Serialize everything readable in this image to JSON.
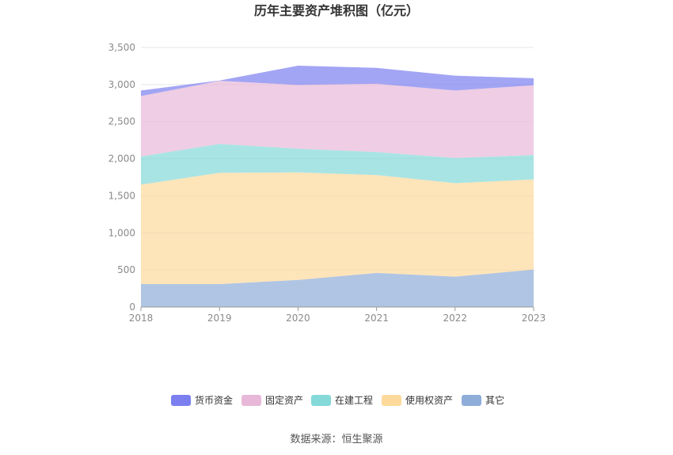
{
  "chart_data": {
    "type": "area",
    "stacked": true,
    "title": "历年主要资产堆积图（亿元）",
    "categories": [
      "2018",
      "2019",
      "2020",
      "2021",
      "2022",
      "2023"
    ],
    "ylim": [
      0,
      3500
    ],
    "yticks": [
      0,
      500,
      1000,
      1500,
      2000,
      2500,
      3000,
      3500
    ],
    "ytick_labels": [
      "0",
      "500",
      "1,000",
      "1,500",
      "2,000",
      "2,500",
      "3,000",
      "3,500"
    ],
    "grid": true,
    "legend_position": "bottom",
    "series": [
      {
        "name": "其它",
        "color": "#8fadd9",
        "values": [
          310,
          310,
          365,
          460,
          410,
          505
        ]
      },
      {
        "name": "使用权资产",
        "color": "#fdd99b",
        "values": [
          1340,
          1500,
          1450,
          1320,
          1260,
          1215
        ]
      },
      {
        "name": "在建工程",
        "color": "#85d9d9",
        "values": [
          380,
          390,
          320,
          310,
          340,
          330
        ]
      },
      {
        "name": "固定资产",
        "color": "#e8b8d8",
        "values": [
          815,
          850,
          860,
          920,
          910,
          940
        ]
      },
      {
        "name": "货币资金",
        "color": "#7b7ff0",
        "values": [
          75,
          5,
          260,
          215,
          200,
          95
        ]
      }
    ],
    "legend_order": [
      "货币资金",
      "固定资产",
      "在建工程",
      "使用权资产",
      "其它"
    ]
  },
  "source_text": "数据来源：恒生聚源"
}
